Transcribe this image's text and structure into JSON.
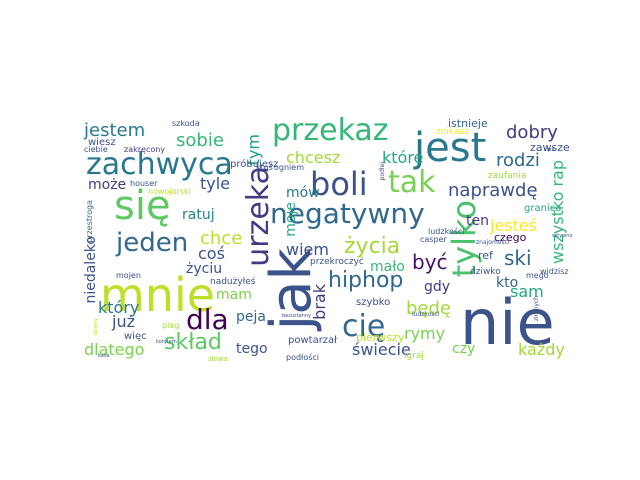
{
  "words": [
    {
      "text": "nie",
      "color": "#3b528b"
    },
    {
      "text": "jak",
      "color": "#3b528b"
    },
    {
      "text": "mnie",
      "color": "#bddf26"
    },
    {
      "text": "się",
      "color": "#5ec962"
    },
    {
      "text": "jest",
      "color": "#2a788e"
    },
    {
      "text": "zachwyca",
      "color": "#2a788e"
    },
    {
      "text": "przekaz",
      "color": "#35b779"
    },
    {
      "text": "negatywny",
      "color": "#31688e"
    },
    {
      "text": "boli",
      "color": "#3b528b"
    },
    {
      "text": "tak",
      "color": "#7ad151"
    },
    {
      "text": "tylko",
      "color": "#4ac16d"
    },
    {
      "text": "urzeka",
      "color": "#443983"
    },
    {
      "text": "jeden",
      "color": "#31688e"
    },
    {
      "text": "dla",
      "color": "#440154"
    },
    {
      "text": "cię",
      "color": "#31688e"
    },
    {
      "text": "hiphop",
      "color": "#31688e"
    },
    {
      "text": "życia",
      "color": "#a2da37"
    },
    {
      "text": "skład",
      "color": "#5ec962"
    },
    {
      "text": "jestem",
      "color": "#2a788e"
    },
    {
      "text": "sobie",
      "color": "#35b779"
    },
    {
      "text": "dobry",
      "color": "#443983"
    },
    {
      "text": "rodzi",
      "color": "#31688e"
    },
    {
      "text": "naprawdę",
      "color": "#3b528b"
    },
    {
      "text": "tym",
      "color": "#1f9e89"
    },
    {
      "text": "które",
      "color": "#22a884"
    },
    {
      "text": "chcesz",
      "color": "#a2da37"
    },
    {
      "text": "wszystko rap",
      "color": "#35b779"
    },
    {
      "text": "może",
      "color": "#443983"
    },
    {
      "text": "tyle",
      "color": "#3b528b"
    },
    {
      "text": "ratuj",
      "color": "#26828e"
    },
    {
      "text": "chce",
      "color": "#bddf26"
    },
    {
      "text": "coś",
      "color": "#3b528b"
    },
    {
      "text": "życiu",
      "color": "#3b528b"
    },
    {
      "text": "wiem",
      "color": "#3b528b"
    },
    {
      "text": "być",
      "color": "#471164"
    },
    {
      "text": "mało",
      "color": "#35b779"
    },
    {
      "text": "ski",
      "color": "#31688e"
    },
    {
      "text": "jesteś",
      "color": "#fde725"
    },
    {
      "text": "ten",
      "color": "#443983"
    },
    {
      "text": "sam",
      "color": "#22a884"
    },
    {
      "text": "który",
      "color": "#2a788e"
    },
    {
      "text": "już",
      "color": "#3b528b"
    },
    {
      "text": "dlatego",
      "color": "#7ad151"
    },
    {
      "text": "tego",
      "color": "#3b528b"
    },
    {
      "text": "peja",
      "color": "#31688e"
    },
    {
      "text": "mam",
      "color": "#7ad151"
    },
    {
      "text": "brak",
      "color": "#443983"
    },
    {
      "text": "moje",
      "color": "#22a884"
    },
    {
      "text": "mów",
      "color": "#2a788e"
    },
    {
      "text": "gdy",
      "color": "#443983"
    },
    {
      "text": "będę",
      "color": "#a2da37"
    },
    {
      "text": "rymy",
      "color": "#7ad151"
    },
    {
      "text": "świecie",
      "color": "#3b528b"
    },
    {
      "text": "czy",
      "color": "#7ad151"
    },
    {
      "text": "każdy",
      "color": "#a2da37"
    },
    {
      "text": "kto",
      "color": "#31688e"
    },
    {
      "text": "niedaleko",
      "color": "#3b528b"
    },
    {
      "text": "czego",
      "color": "#440154"
    },
    {
      "text": "ref",
      "color": "#3b528b"
    },
    {
      "text": "próbujesz",
      "color": "#3b528b"
    },
    {
      "text": "pierwszy",
      "color": "#bddf26"
    },
    {
      "text": "powtarzał",
      "color": "#3b528b"
    },
    {
      "text": "granica",
      "color": "#22a884"
    },
    {
      "text": "zawsze",
      "color": "#3b528b"
    },
    {
      "text": "istnieje",
      "color": "#31688e"
    },
    {
      "text": "zaufania",
      "color": "#a2da37"
    },
    {
      "text": "znikasz",
      "color": "#fde725"
    },
    {
      "text": "szkoda",
      "color": "#3b528b"
    },
    {
      "text": "wiesz",
      "color": "#3b528b"
    },
    {
      "text": "zakręcony",
      "color": "#443983"
    },
    {
      "text": "ciebie",
      "color": "#3b528b"
    },
    {
      "text": "houser",
      "color": "#3b528b"
    },
    {
      "text": "nowojorski",
      "color": "#bddf26"
    },
    {
      "text": "przestroga",
      "color": "#31688e"
    },
    {
      "text": "mojen",
      "color": "#3b528b"
    },
    {
      "text": "więc",
      "color": "#3b528b"
    },
    {
      "text": "plag",
      "color": "#a2da37"
    },
    {
      "text": "nadużyłeś",
      "color": "#3b528b"
    },
    {
      "text": "słowa",
      "color": "#a2da37"
    },
    {
      "text": "podłości",
      "color": "#3b528b"
    },
    {
      "text": "szybko",
      "color": "#3b528b"
    },
    {
      "text": "przekroczyć",
      "color": "#3b528b"
    },
    {
      "text": "ludzkości",
      "color": "#3b528b"
    },
    {
      "text": "casper",
      "color": "#3b528b"
    },
    {
      "text": "dziwko",
      "color": "#3b528b"
    },
    {
      "text": "igraj",
      "color": "#a2da37"
    },
    {
      "text": "widzisz",
      "color": "#3b528b"
    },
    {
      "text": "mego",
      "color": "#3b528b"
    },
    {
      "text": "ktoś",
      "color": "#3b528b"
    },
    {
      "text": "ogniem",
      "color": "#3b528b"
    },
    {
      "text": "znajomości",
      "color": "#3b528b"
    },
    {
      "text": "zimnych",
      "color": "#3b528b"
    },
    {
      "text": "ludzkości",
      "color": "#3b528b"
    },
    {
      "text": "podłej",
      "color": "#3b528b"
    },
    {
      "text": "bezustanny",
      "color": "#3b528b"
    },
    {
      "text": "cipa",
      "color": "#3b528b"
    },
    {
      "text": "kasa",
      "color": "#3b528b"
    },
    {
      "text": "korytem",
      "color": "#3b528b"
    },
    {
      "text": "dziwny",
      "color": "#bddf26"
    },
    {
      "text": "sztywno",
      "color": "#3b528b"
    }
  ]
}
